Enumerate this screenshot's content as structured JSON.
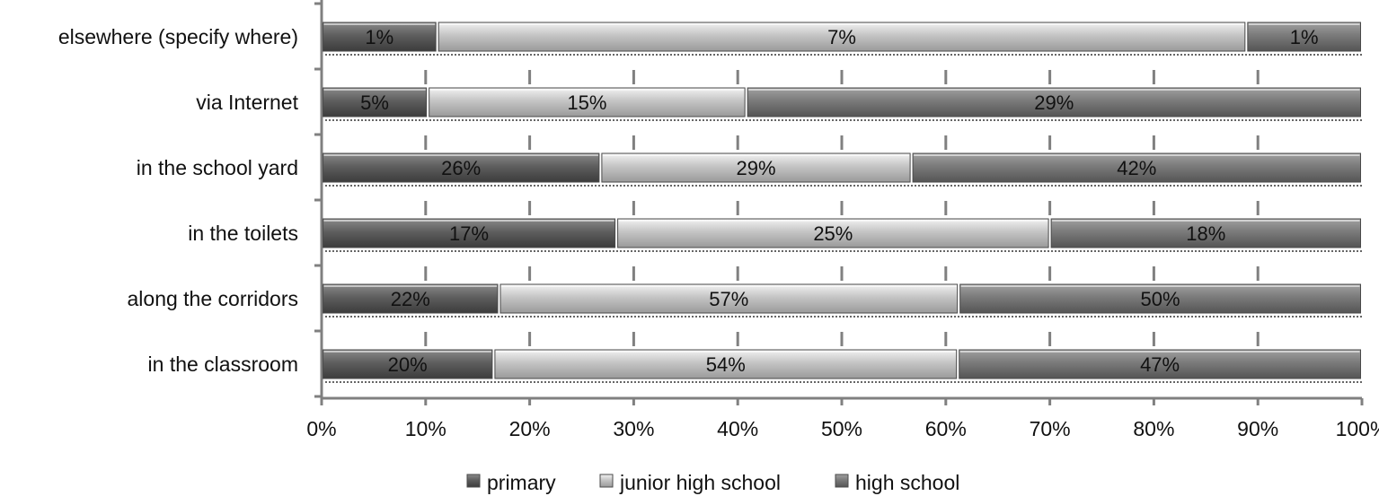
{
  "chart_data": {
    "type": "bar",
    "orientation": "horizontal",
    "stacked": "percent",
    "categories": [
      "elsewhere (specify where)",
      "via Internet",
      "in the school yard",
      "in the toilets",
      "along the corridors",
      "in the classroom"
    ],
    "series": [
      {
        "name": "primary",
        "values": [
          1,
          5,
          26,
          17,
          22,
          20
        ],
        "labels": [
          "1%",
          "5%",
          "26%",
          "17%",
          "22%",
          "20%"
        ],
        "color": "#5a5a5a"
      },
      {
        "name": "junior high school",
        "values": [
          7,
          15,
          29,
          25,
          57,
          54
        ],
        "labels": [
          "7%",
          "15%",
          "29%",
          "25%",
          "57%",
          "54%"
        ],
        "color": "#bdbdbd"
      },
      {
        "name": "high school",
        "values": [
          1,
          29,
          42,
          18,
          50,
          47
        ],
        "labels": [
          "1%",
          "29%",
          "42%",
          "18%",
          "50%",
          "47%"
        ],
        "color": "#747474"
      }
    ],
    "xticks": [
      "0%",
      "10%",
      "20%",
      "30%",
      "40%",
      "50%",
      "60%",
      "70%",
      "80%",
      "90%",
      "100%"
    ],
    "xlim": [
      0,
      100
    ],
    "legend": "bottom",
    "grid": false
  }
}
